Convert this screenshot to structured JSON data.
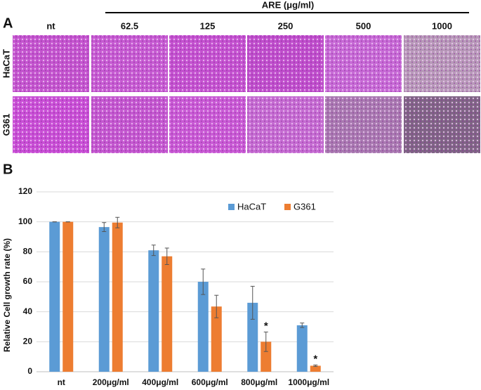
{
  "panel_a": {
    "panel_label": "A",
    "header": "ARE (μg/ml)",
    "columns": [
      "nt",
      "62.5",
      "125",
      "250",
      "500",
      "1000"
    ],
    "rows": [
      "HaCaT",
      "G361"
    ]
  },
  "chart_data": {
    "type": "bar",
    "panel_label": "B",
    "y_label": "Relative Cell growth rate (%)",
    "categories": [
      "nt",
      "200μg/ml",
      "400μg/ml",
      "600μg/ml",
      "800μg/ml",
      "1000μg/ml"
    ],
    "series": [
      {
        "name": "HaCaT",
        "color": "#5b9bd5",
        "values": [
          100,
          96.5,
          81,
          60,
          46,
          31
        ],
        "errors": [
          0,
          3,
          3.5,
          8.5,
          11,
          1.5
        ]
      },
      {
        "name": "G361",
        "color": "#ed7d31",
        "values": [
          100,
          99.5,
          77,
          43.5,
          20,
          4
        ],
        "errors": [
          0,
          3.5,
          5.5,
          7.5,
          6.5,
          0.5
        ],
        "labels": [
          null,
          null,
          null,
          null,
          "*",
          "*"
        ]
      }
    ],
    "ylim": [
      0,
      120
    ],
    "yticks": [
      0,
      20,
      40,
      60,
      80,
      100,
      120
    ],
    "grid": true,
    "legend": "upper right"
  }
}
